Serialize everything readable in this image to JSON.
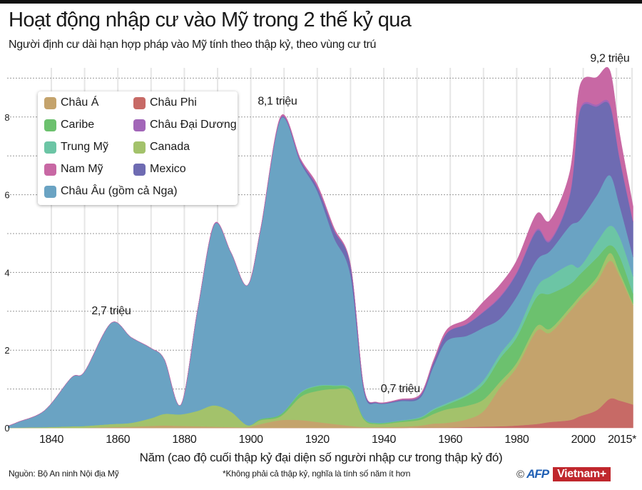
{
  "header": {
    "title": "Hoạt động nhập cư vào Mỹ trong 2 thế kỷ qua",
    "subtitle": "Người định cư dài hạn hợp pháp vào Mỹ tính theo thập kỷ, theo vùng cư trú"
  },
  "footer": {
    "source": "Nguồn: Bộ An ninh Nội địa Mỹ",
    "note": "*Không phải cả thập kỷ, nghĩa là tính số năm ít hơn",
    "copyright": "©",
    "logo_afp": "AFP",
    "logo_vietnamplus": "Vietnam+"
  },
  "chart_data": {
    "type": "area",
    "stacked": true,
    "title": "Hoạt động nhập cư vào Mỹ trong 2 thế kỷ qua",
    "subtitle": "Người định cư dài hạn hợp pháp vào Mỹ tính theo thập kỷ, theo vùng cư trú",
    "xlabel": "Năm (cao độ cuối thập kỷ đại diện số người nhập cư trong thập kỷ đó)",
    "ylabel": "",
    "unit": "triệu",
    "xlim": [
      1827,
      2015
    ],
    "ylim": [
      0,
      9.2
    ],
    "grid": true,
    "legend_position": "top-left",
    "x_ticks": [
      1840,
      1860,
      1880,
      1900,
      1920,
      1940,
      1960,
      1980,
      2000
    ],
    "x_tick_labels": [
      "1840",
      "1860",
      "1880",
      "1900",
      "1920",
      "1940",
      "1960",
      "1980",
      "2000",
      "2015*"
    ],
    "x_tick_label_years": [
      1840,
      1860,
      1880,
      1900,
      1920,
      1940,
      1960,
      1980,
      2000,
      2015
    ],
    "y_ticks": [
      0,
      2,
      4,
      6,
      8
    ],
    "y_tick_labels": [
      "0",
      "2",
      "4",
      "6",
      "8"
    ],
    "annotations": [
      {
        "text": "2,7 triệu",
        "x": 1858,
        "y": 2.7
      },
      {
        "text": "8,1 triệu",
        "x": 1908,
        "y": 8.1
      },
      {
        "text": "0,7 triệu",
        "x": 1945,
        "y": 0.7
      },
      {
        "text": "9,2 triệu",
        "x": 2008,
        "y": 9.2
      }
    ],
    "x": [
      1827,
      1830,
      1838,
      1846,
      1850,
      1858,
      1864,
      1870,
      1874,
      1879,
      1884,
      1889,
      1894,
      1899,
      1903,
      1909,
      1915,
      1920,
      1925,
      1930,
      1934,
      1938,
      1945,
      1951,
      1955,
      1959,
      1965,
      1970,
      1975,
      1980,
      1986,
      1990,
      1996,
      1999,
      2004,
      2008,
      2011,
      2015
    ],
    "series": [
      {
        "name": "Châu Phi",
        "color": "#c76a66",
        "values": [
          0,
          0,
          0,
          0,
          0,
          0,
          0,
          0,
          0,
          0,
          0,
          0,
          0,
          0,
          0,
          0,
          0,
          0,
          0,
          0,
          0,
          0,
          0,
          0.01,
          0.01,
          0.01,
          0.02,
          0.03,
          0.04,
          0.06,
          0.1,
          0.15,
          0.2,
          0.3,
          0.45,
          0.75,
          0.7,
          0.6
        ]
      },
      {
        "name": "Châu Á",
        "color": "#c4a36c",
        "values": [
          0,
          0,
          0,
          0,
          0,
          0.02,
          0.03,
          0.05,
          0.06,
          0.05,
          0.04,
          0.03,
          0.02,
          0.02,
          0.1,
          0.2,
          0.2,
          0.15,
          0.1,
          0.05,
          0.02,
          0.02,
          0.03,
          0.05,
          0.1,
          0.12,
          0.2,
          0.4,
          1.0,
          1.5,
          2.4,
          2.3,
          2.8,
          3.0,
          3.3,
          3.55,
          3.2,
          2.55
        ]
      },
      {
        "name": "Canada",
        "color": "#a3c26b",
        "values": [
          0,
          0.01,
          0.02,
          0.04,
          0.05,
          0.08,
          0.1,
          0.2,
          0.3,
          0.3,
          0.4,
          0.55,
          0.4,
          0.05,
          0.1,
          0.1,
          0.6,
          0.8,
          0.9,
          0.9,
          0.2,
          0.08,
          0.12,
          0.15,
          0.25,
          0.35,
          0.35,
          0.3,
          0.15,
          0.12,
          0.12,
          0.1,
          0.1,
          0.1,
          0.12,
          0.2,
          0.1,
          0.05
        ]
      },
      {
        "name": "Caribe",
        "color": "#6cc16e",
        "values": [
          0,
          0,
          0,
          0,
          0,
          0,
          0,
          0,
          0,
          0,
          0,
          0,
          0,
          0,
          0.03,
          0.05,
          0.1,
          0.12,
          0.08,
          0.05,
          0.03,
          0.02,
          0.03,
          0.05,
          0.1,
          0.12,
          0.25,
          0.4,
          0.6,
          0.65,
          0.75,
          0.9,
          0.6,
          0.55,
          0.5,
          0.2,
          0.4,
          0.25
        ]
      },
      {
        "name": "Trung Mỹ",
        "color": "#6cc5a5",
        "values": [
          0,
          0,
          0,
          0,
          0,
          0,
          0,
          0,
          0,
          0,
          0,
          0,
          0,
          0,
          0,
          0,
          0.02,
          0.02,
          0.02,
          0.02,
          0.01,
          0.01,
          0.01,
          0.02,
          0.03,
          0.04,
          0.05,
          0.1,
          0.12,
          0.15,
          0.25,
          0.45,
          0.5,
          0.2,
          0.4,
          0.5,
          0.5,
          0.45
        ]
      },
      {
        "name": "Châu Âu (gồm cả Nga)",
        "color": "#6aa3c3",
        "values": [
          0.05,
          0.14,
          0.43,
          1.25,
          1.4,
          2.6,
          2.2,
          1.8,
          1.4,
          0.25,
          2.6,
          4.65,
          4.1,
          3.6,
          4.9,
          7.6,
          5.9,
          5.0,
          3.8,
          2.9,
          0.7,
          0.5,
          0.5,
          0.5,
          1.1,
          1.6,
          1.5,
          1.35,
          0.9,
          0.9,
          0.7,
          0.65,
          1.0,
          1.2,
          1.2,
          1.3,
          0.8,
          0.5
        ]
      },
      {
        "name": "Mexico",
        "color": "#6e6bb2",
        "values": [
          0,
          0,
          0,
          0,
          0,
          0,
          0,
          0,
          0,
          0,
          0,
          0,
          0,
          0,
          0,
          0.02,
          0.05,
          0.1,
          0.2,
          0.25,
          0.08,
          0.02,
          0.03,
          0.05,
          0.1,
          0.2,
          0.3,
          0.4,
          0.55,
          0.6,
          0.75,
          0.25,
          0.8,
          2.8,
          2.3,
          1.8,
          1.2,
          0.9
        ]
      },
      {
        "name": "Châu Đại Dương",
        "color": "#a266b8",
        "values": [
          0,
          0,
          0,
          0,
          0,
          0,
          0,
          0,
          0,
          0,
          0,
          0.01,
          0,
          0,
          0.01,
          0.02,
          0.02,
          0.02,
          0.01,
          0.01,
          0,
          0,
          0,
          0.01,
          0.01,
          0.01,
          0.01,
          0.02,
          0.03,
          0.03,
          0.04,
          0.04,
          0.05,
          0.05,
          0.05,
          0.05,
          0.04,
          0.02
        ]
      },
      {
        "name": "Nam Mỹ",
        "color": "#c868a4",
        "values": [
          0,
          0,
          0,
          0,
          0,
          0,
          0,
          0,
          0,
          0,
          0,
          0.01,
          0,
          0,
          0.01,
          0.03,
          0.03,
          0.05,
          0.05,
          0.02,
          0.01,
          0.01,
          0.02,
          0.03,
          0.05,
          0.08,
          0.12,
          0.25,
          0.3,
          0.3,
          0.4,
          0.5,
          0.55,
          0.6,
          0.7,
          0.85,
          0.6,
          0.38
        ]
      }
    ],
    "legend_order": [
      "Châu Á",
      "Châu Phi",
      "Caribe",
      "Châu Đại Dương",
      "Trung Mỹ",
      "Canada",
      "Nam Mỹ",
      "Mexico",
      "Châu Âu (gồm cả Nga)"
    ]
  }
}
